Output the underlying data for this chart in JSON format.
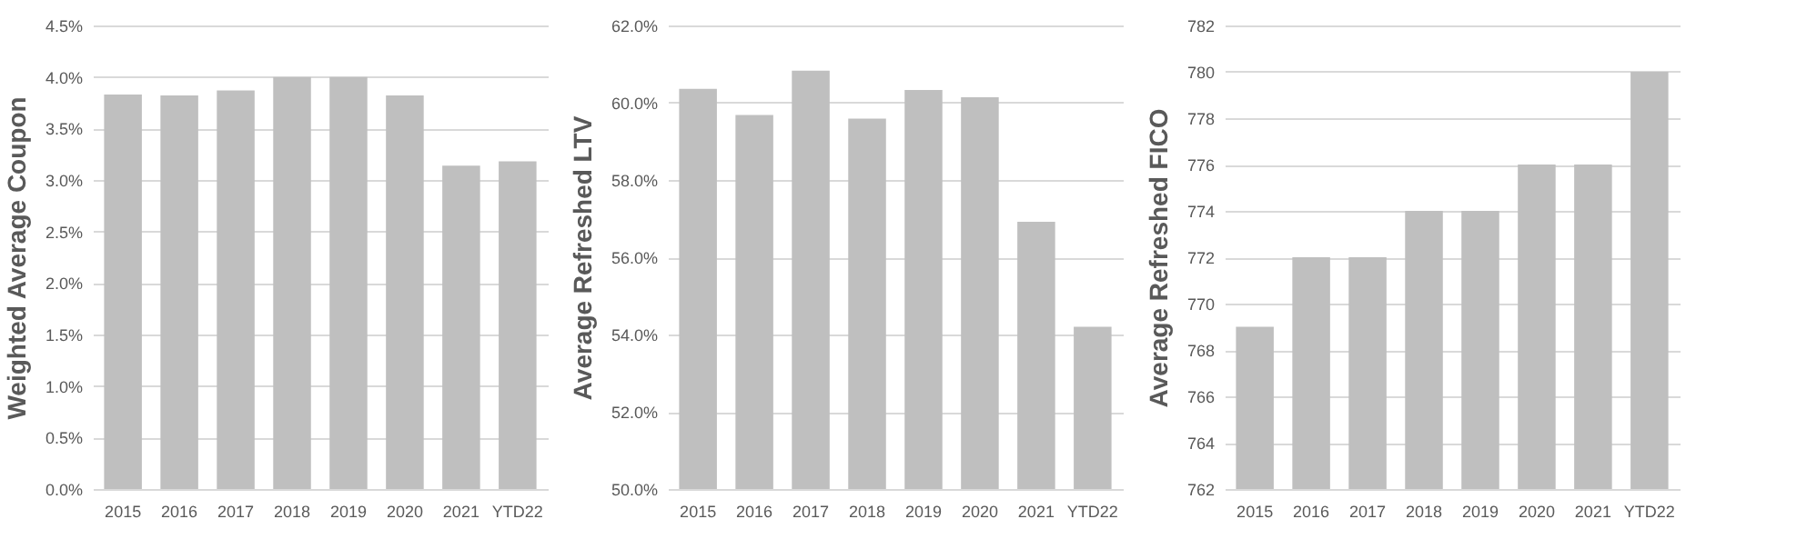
{
  "chart_data": [
    {
      "type": "bar",
      "ylabel": "Weighted Average Coupon",
      "categories": [
        "2015",
        "2016",
        "2017",
        "2018",
        "2019",
        "2020",
        "2021",
        "YTD22"
      ],
      "values": [
        3.83,
        3.82,
        3.87,
        4.0,
        4.0,
        3.82,
        3.14,
        3.18
      ],
      "color": "#bfbfbf",
      "ylim": [
        0,
        4.5
      ],
      "yticks": [
        {
          "value": 0,
          "label": "0.0%"
        },
        {
          "value": 0.5,
          "label": "0.5%"
        },
        {
          "value": 1,
          "label": "1.0%"
        },
        {
          "value": 1.5,
          "label": "1.5%"
        },
        {
          "value": 2,
          "label": "2.0%"
        },
        {
          "value": 2.5,
          "label": "2.5%"
        },
        {
          "value": 3,
          "label": "3.0%"
        },
        {
          "value": 3.5,
          "label": "3.5%"
        },
        {
          "value": 4,
          "label": "4.0%"
        },
        {
          "value": 4.5,
          "label": "4.5%"
        }
      ],
      "grid": "y"
    },
    {
      "type": "bar",
      "ylabel": "Average Refreshed LTV",
      "categories": [
        "2015",
        "2016",
        "2017",
        "2018",
        "2019",
        "2020",
        "2021",
        "YTD22"
      ],
      "values": [
        60.36,
        59.68,
        60.83,
        59.59,
        60.33,
        60.14,
        56.92,
        54.2
      ],
      "color": "#bfbfbf",
      "ylim": [
        50,
        62
      ],
      "yticks": [
        {
          "value": 50,
          "label": "50.0%"
        },
        {
          "value": 52,
          "label": "52.0%"
        },
        {
          "value": 54,
          "label": "54.0%"
        },
        {
          "value": 56,
          "label": "56.0%"
        },
        {
          "value": 58,
          "label": "58.0%"
        },
        {
          "value": 60,
          "label": "60.0%"
        },
        {
          "value": 62,
          "label": "62.0%"
        }
      ],
      "grid": "y"
    },
    {
      "type": "bar",
      "ylabel": "Average Refreshed FICO",
      "categories": [
        "2015",
        "2016",
        "2017",
        "2018",
        "2019",
        "2020",
        "2021",
        "YTD22"
      ],
      "values": [
        769,
        772,
        772,
        774,
        774,
        776,
        776,
        780
      ],
      "color": "#bfbfbf",
      "ylim": [
        762,
        782
      ],
      "yticks": [
        762,
        764,
        766,
        768,
        770,
        772,
        774,
        776,
        778,
        780,
        782
      ],
      "grid": "y"
    }
  ]
}
